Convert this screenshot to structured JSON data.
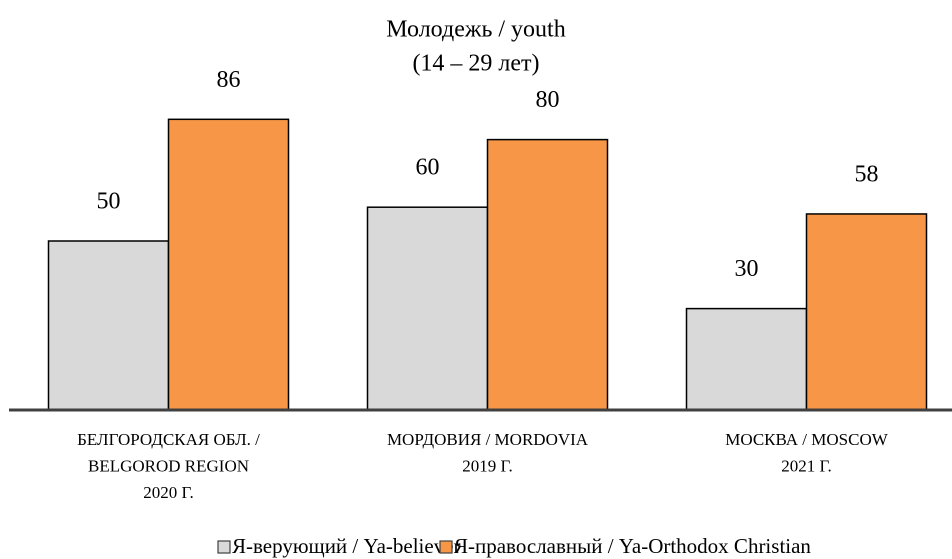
{
  "chart_data": {
    "type": "bar",
    "title": "Молодежь / youth",
    "subtitle": "(14 – 29 лет)",
    "categories": [
      [
        "БЕЛГОРОДСКАЯ ОБЛ. /",
        "BELGOROD REGION",
        "2020 Г."
      ],
      [
        "МОРДОВИЯ / MORDOVIA",
        "2019 Г."
      ],
      [
        "МОСКВА / MOSCOW",
        "2021 Г."
      ]
    ],
    "series": [
      {
        "name": "Я-верующий / Ya-believer",
        "color": "#d9d9d9",
        "values": [
          50,
          60,
          30
        ]
      },
      {
        "name": "Я-православный / Ya-Orthodox Christian",
        "color": "#f79646",
        "values": [
          86,
          80,
          58
        ]
      }
    ],
    "legend": "bottom"
  }
}
